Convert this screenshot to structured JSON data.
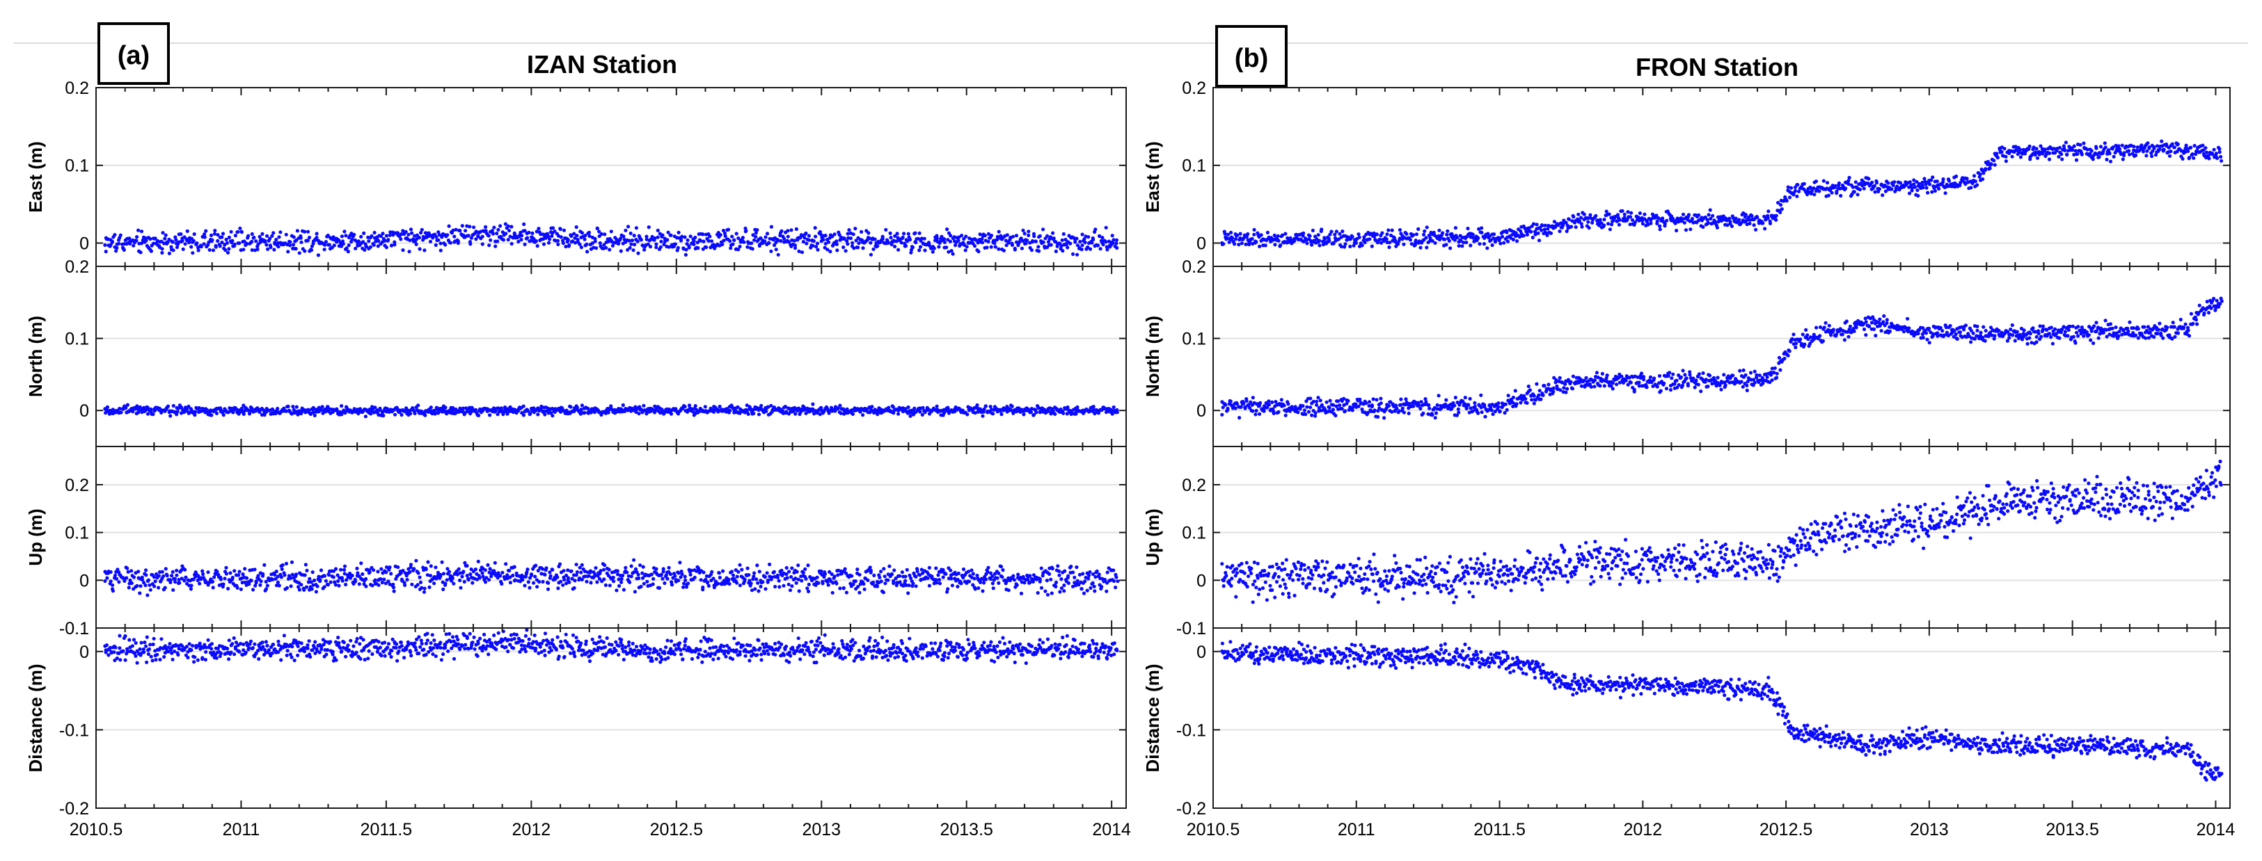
{
  "chart_data": [
    {
      "panel": "(a)",
      "title": "IZAN Station",
      "type": "scatter",
      "xlim": [
        2010.5,
        2014.05
      ],
      "xticks": [
        2010.5,
        2011,
        2011.5,
        2012,
        2012.5,
        2013,
        2013.5,
        2014
      ],
      "xtick_labels": [
        "2010.5",
        "2011",
        "2011.5",
        "2012",
        "2012.5",
        "2013",
        "2013.5",
        "2014"
      ],
      "grid": true,
      "marker_color": "#0a0aff",
      "subplots": [
        {
          "ylabel": "East (m)",
          "ylim": [
            -0.03,
            0.2
          ],
          "yticks": [
            0,
            0.1,
            0.2
          ],
          "ytick_labels": [
            "0",
            "0.1",
            "0.2"
          ],
          "series": [
            {
              "name": "East",
              "x": [
                2010.5,
                2011.0,
                2011.5,
                2011.9,
                2012.2,
                2012.5,
                2013.0,
                2013.5,
                2014.0
              ],
              "y": [
                0.0,
                0.002,
                0.004,
                0.012,
                0.005,
                0.002,
                0.003,
                0.002,
                0.002
              ],
              "noise": 0.007
            }
          ]
        },
        {
          "ylabel": "North (m)",
          "ylim": [
            -0.05,
            0.2
          ],
          "yticks": [
            0,
            0.1,
            0.2
          ],
          "ytick_labels": [
            "0",
            "0.1",
            "0.2"
          ],
          "series": [
            {
              "name": "North",
              "x": [
                2010.5,
                2011.0,
                2011.5,
                2012.0,
                2012.5,
                2013.0,
                2013.5,
                2014.0
              ],
              "y": [
                0.0,
                0.0,
                -0.001,
                0.0,
                0.001,
                0.0,
                0.0,
                0.0
              ],
              "noise": 0.003
            }
          ]
        },
        {
          "ylabel": "Up (m)",
          "ylim": [
            -0.1,
            0.28
          ],
          "yticks": [
            -0.1,
            0,
            0.1,
            0.2
          ],
          "ytick_labels": [
            "-0.1",
            "0",
            "0.1",
            "0.2"
          ],
          "series": [
            {
              "name": "Up",
              "x": [
                2010.5,
                2011.0,
                2011.5,
                2011.9,
                2012.5,
                2013.0,
                2013.5,
                2014.0
              ],
              "y": [
                0.0,
                0.004,
                0.006,
                0.012,
                0.006,
                0.004,
                0.003,
                0.004
              ],
              "noise": 0.013
            }
          ]
        },
        {
          "ylabel": "Distance (m)",
          "ylim": [
            -0.2,
            0.03
          ],
          "yticks": [
            -0.2,
            -0.1,
            0
          ],
          "ytick_labels": [
            "-0.2",
            "-0.1",
            "0"
          ],
          "series": [
            {
              "name": "Distance",
              "x": [
                2010.5,
                2011.0,
                2011.5,
                2011.9,
                2012.2,
                2012.5,
                2013.0,
                2013.5,
                2014.0
              ],
              "y": [
                0.0,
                0.002,
                0.004,
                0.012,
                0.005,
                0.002,
                0.003,
                0.002,
                0.002
              ],
              "noise": 0.007
            }
          ]
        }
      ]
    },
    {
      "panel": "(b)",
      "title": "FRON Station",
      "type": "scatter",
      "xlim": [
        2010.5,
        2014.05
      ],
      "xticks": [
        2010.5,
        2011,
        2011.5,
        2012,
        2012.5,
        2013,
        2013.5,
        2014
      ],
      "xtick_labels": [
        "2010.5",
        "2011",
        "2011.5",
        "2012",
        "2012.5",
        "2013",
        "2013.5",
        "2014"
      ],
      "grid": true,
      "marker_color": "#0a0aff",
      "subplots": [
        {
          "ylabel": "East (m)",
          "ylim": [
            -0.03,
            0.2
          ],
          "yticks": [
            0,
            0.1,
            0.2
          ],
          "ytick_labels": [
            "0",
            "0.1",
            "0.2"
          ],
          "series": [
            {
              "name": "East",
              "x": [
                2010.5,
                2011.5,
                2011.8,
                2012.0,
                2012.45,
                2012.52,
                2013.15,
                2013.25,
                2013.9,
                2014.0
              ],
              "y": [
                0.004,
                0.007,
                0.03,
                0.03,
                0.03,
                0.07,
                0.077,
                0.117,
                0.12,
                0.112
              ],
              "noise": 0.005
            }
          ]
        },
        {
          "ylabel": "North (m)",
          "ylim": [
            -0.05,
            0.2
          ],
          "yticks": [
            0,
            0.1,
            0.2
          ],
          "ytick_labels": [
            "0",
            "0.1",
            "0.2"
          ],
          "series": [
            {
              "name": "North",
              "x": [
                2010.5,
                2011.5,
                2011.75,
                2012.0,
                2012.45,
                2012.52,
                2012.8,
                2013.0,
                2013.2,
                2013.9,
                2013.97,
                2014.0
              ],
              "y": [
                0.004,
                0.005,
                0.04,
                0.04,
                0.045,
                0.095,
                0.12,
                0.11,
                0.105,
                0.112,
                0.145,
                0.145
              ],
              "noise": 0.006
            }
          ]
        },
        {
          "ylabel": "Up (m)",
          "ylim": [
            -0.1,
            0.28
          ],
          "yticks": [
            -0.1,
            0,
            0.1,
            0.2
          ],
          "ytick_labels": [
            "-0.1",
            "0",
            "0.1",
            "0.2"
          ],
          "series": [
            {
              "name": "Up",
              "x": [
                2010.5,
                2011.5,
                2011.8,
                2012.45,
                2012.52,
                2012.8,
                2013.0,
                2013.3,
                2013.9,
                2014.0
              ],
              "y": [
                0.005,
                0.01,
                0.04,
                0.035,
                0.075,
                0.11,
                0.12,
                0.165,
                0.17,
                0.21
              ],
              "noise": 0.02
            }
          ]
        },
        {
          "ylabel": "Distance (m)",
          "ylim": [
            -0.2,
            0.03
          ],
          "yticks": [
            -0.2,
            -0.1,
            0
          ],
          "ytick_labels": [
            "-0.2",
            "-0.1",
            "0"
          ],
          "series": [
            {
              "name": "Distance",
              "x": [
                2010.5,
                2011.5,
                2011.75,
                2012.0,
                2012.45,
                2012.52,
                2012.8,
                2013.0,
                2013.2,
                2013.9,
                2013.97,
                2014.0
              ],
              "y": [
                -0.003,
                -0.008,
                -0.042,
                -0.042,
                -0.05,
                -0.1,
                -0.12,
                -0.11,
                -0.12,
                -0.125,
                -0.155,
                -0.155
              ],
              "noise": 0.006
            }
          ]
        }
      ]
    }
  ]
}
